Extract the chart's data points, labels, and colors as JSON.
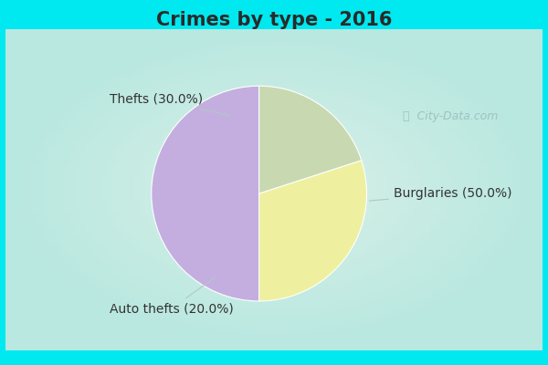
{
  "title": "Crimes by type - 2016",
  "slices": [
    {
      "label": "Burglaries",
      "pct": 50.0,
      "color": "#c4aee0"
    },
    {
      "label": "Thefts",
      "pct": 30.0,
      "color": "#eef0a0"
    },
    {
      "label": "Auto thefts",
      "pct": 20.0,
      "color": "#c8d8b0"
    }
  ],
  "border_color": "#00e8f0",
  "bg_center_color": "#daf0e8",
  "bg_edge_color": "#b8e8e0",
  "title_fontsize": 15,
  "label_fontsize": 10,
  "watermark": "City-Data.com",
  "startangle": 90,
  "text_color": "#333333",
  "line_color": "#b0c8c8"
}
